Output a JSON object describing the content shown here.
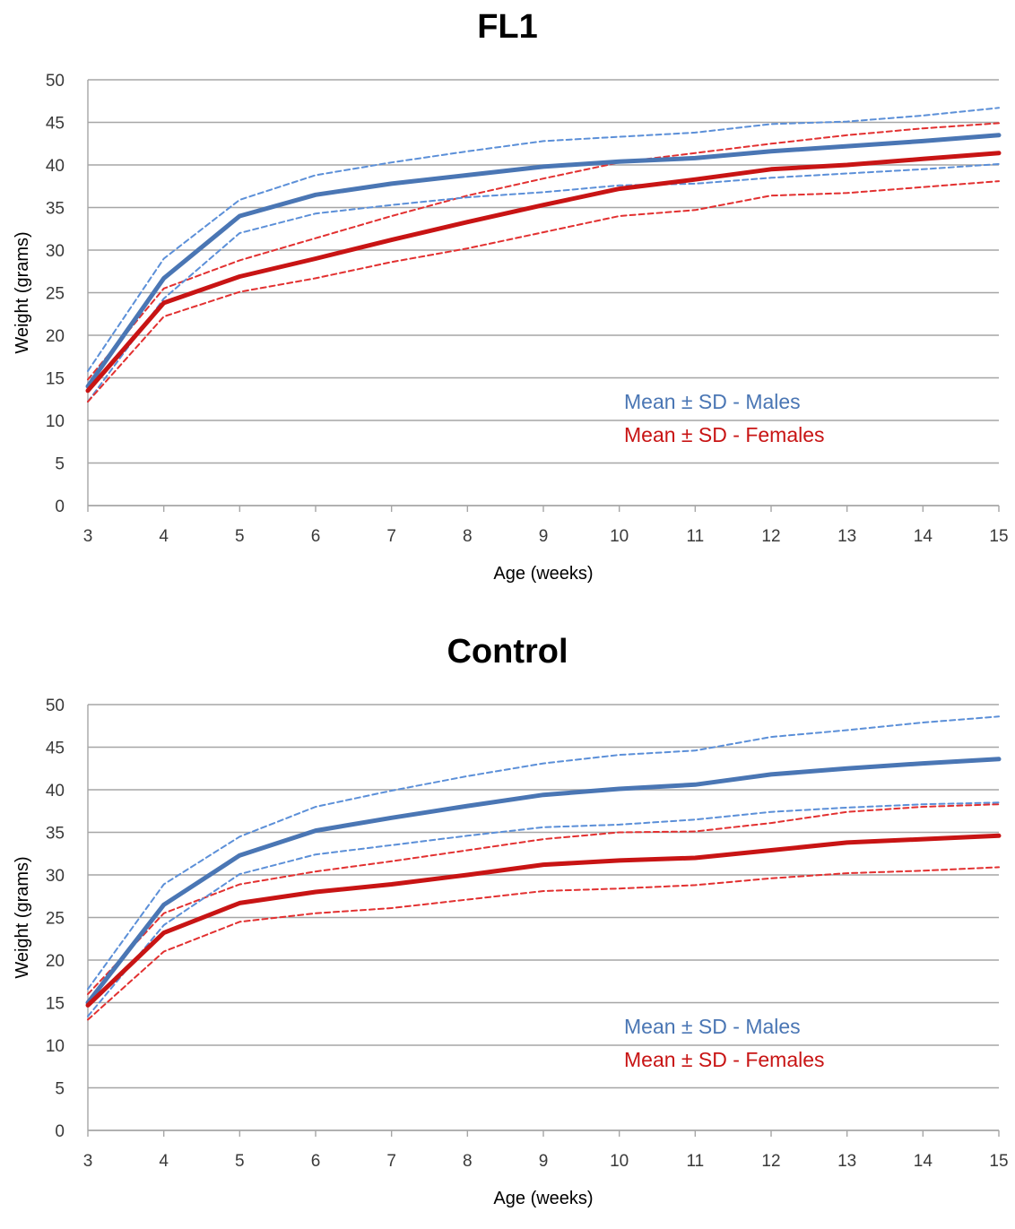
{
  "colors": {
    "males": "#4a76b4",
    "females": "#c81414",
    "males_sd": "#5b8fd8",
    "females_sd": "#e23030",
    "grid": "#a6a6a6"
  },
  "chart_data": [
    {
      "type": "line",
      "title": "FL1",
      "xlabel": "Age (weeks)",
      "ylabel": "Weight (grams)",
      "x": [
        3,
        4,
        5,
        6,
        7,
        8,
        9,
        10,
        11,
        12,
        13,
        14,
        15
      ],
      "xlim": [
        3,
        15
      ],
      "ylim": [
        0,
        50
      ],
      "yticks": [
        0,
        5,
        10,
        15,
        20,
        25,
        30,
        35,
        40,
        45,
        50
      ],
      "grid": true,
      "legend_position": "lower-right",
      "legend": [
        {
          "label": "Mean ± SD - Males",
          "color": "#4a76b4"
        },
        {
          "label": "Mean ± SD - Females",
          "color": "#c81414"
        }
      ],
      "series": [
        {
          "group": "males",
          "line": "mean",
          "values": [
            14,
            26.7,
            34,
            36.5,
            37.8,
            38.8,
            39.8,
            40.4,
            40.8,
            41.6,
            42.2,
            42.8,
            43.5
          ]
        },
        {
          "group": "males",
          "line": "upper",
          "values": [
            15.8,
            29,
            35.9,
            38.8,
            40.3,
            41.6,
            42.8,
            43.3,
            43.8,
            44.8,
            45.1,
            45.8,
            46.7
          ]
        },
        {
          "group": "males",
          "line": "lower",
          "values": [
            12.2,
            24.3,
            32,
            34.3,
            35.3,
            36.2,
            36.8,
            37.6,
            37.8,
            38.5,
            39,
            39.5,
            40.1
          ]
        },
        {
          "group": "females",
          "line": "mean",
          "values": [
            13.5,
            23.8,
            26.9,
            29,
            31.2,
            33.3,
            35.3,
            37.2,
            38.3,
            39.5,
            40,
            40.7,
            41.4
          ]
        },
        {
          "group": "females",
          "line": "upper",
          "values": [
            14.8,
            25.5,
            28.8,
            31.4,
            34,
            36.4,
            38.4,
            40.3,
            41.4,
            42.5,
            43.5,
            44.3,
            44.9
          ]
        },
        {
          "group": "females",
          "line": "lower",
          "values": [
            12.2,
            22.2,
            25.1,
            26.7,
            28.6,
            30.2,
            32.1,
            34,
            34.7,
            36.4,
            36.7,
            37.4,
            38.1
          ]
        }
      ]
    },
    {
      "type": "line",
      "title": "Control",
      "xlabel": "Age (weeks)",
      "ylabel": "Weight (grams)",
      "x": [
        3,
        4,
        5,
        6,
        7,
        8,
        9,
        10,
        11,
        12,
        13,
        14,
        15
      ],
      "xlim": [
        3,
        15
      ],
      "ylim": [
        0,
        50
      ],
      "yticks": [
        0,
        5,
        10,
        15,
        20,
        25,
        30,
        35,
        40,
        45,
        50
      ],
      "grid": true,
      "legend_position": "lower-right",
      "legend": [
        {
          "label": "Mean ± SD - Males",
          "color": "#4a76b4"
        },
        {
          "label": "Mean ± SD - Females",
          "color": "#c81414"
        }
      ],
      "series": [
        {
          "group": "males",
          "line": "mean",
          "values": [
            15,
            26.5,
            32.3,
            35.2,
            36.7,
            38.1,
            39.4,
            40.1,
            40.6,
            41.8,
            42.5,
            43.1,
            43.6
          ]
        },
        {
          "group": "males",
          "line": "upper",
          "values": [
            16.6,
            28.9,
            34.5,
            38,
            39.9,
            41.6,
            43.1,
            44.1,
            44.6,
            46.2,
            47,
            47.9,
            48.6
          ]
        },
        {
          "group": "males",
          "line": "lower",
          "values": [
            13.4,
            24.1,
            30.1,
            32.4,
            33.5,
            34.6,
            35.6,
            35.9,
            36.5,
            37.4,
            37.9,
            38.3,
            38.5
          ]
        },
        {
          "group": "females",
          "line": "mean",
          "values": [
            14.7,
            23.2,
            26.7,
            28,
            28.9,
            30,
            31.2,
            31.7,
            32,
            32.9,
            33.8,
            34.2,
            34.6
          ]
        },
        {
          "group": "females",
          "line": "upper",
          "values": [
            16,
            25.5,
            28.9,
            30.4,
            31.6,
            32.9,
            34.2,
            35,
            35.1,
            36.1,
            37.4,
            38,
            38.3
          ]
        },
        {
          "group": "females",
          "line": "lower",
          "values": [
            13,
            21,
            24.5,
            25.5,
            26.1,
            27.1,
            28.1,
            28.4,
            28.8,
            29.6,
            30.2,
            30.5,
            30.9
          ]
        }
      ]
    }
  ]
}
